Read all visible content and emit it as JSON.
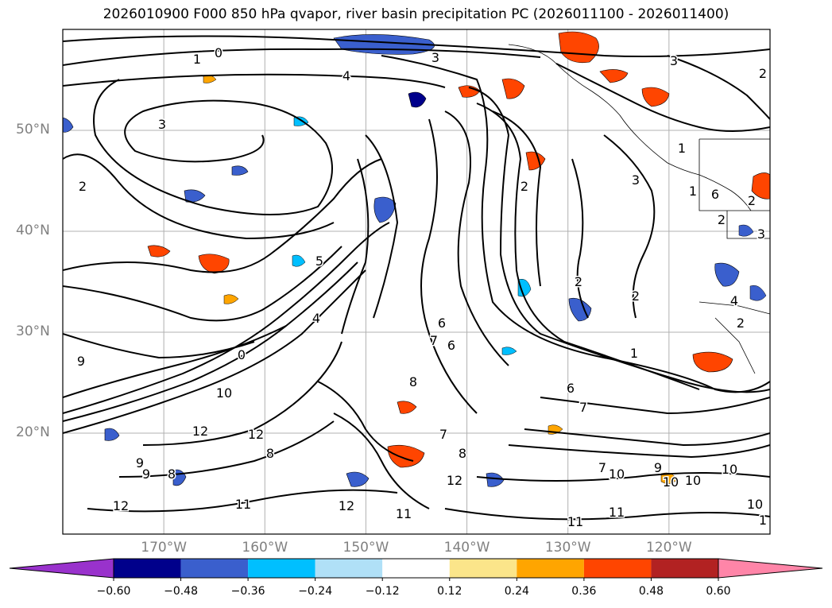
{
  "title": "2026010900 F000 850 hPa qvapor, river basin precipitation PC (2026011100 - 2026011400)",
  "map": {
    "lon_range": [
      -180,
      -110
    ],
    "lat_range": [
      10,
      60
    ],
    "lat_labels": [
      "50°N",
      "40°N",
      "30°N",
      "20°N"
    ],
    "lat_values": [
      50,
      40,
      30,
      20
    ],
    "lon_labels": [
      "170°W",
      "160°W",
      "150°W",
      "140°W",
      "130°W",
      "120°W"
    ],
    "lon_values": [
      -170,
      -160,
      -150,
      -140,
      -130,
      -120
    ],
    "contour_labels": [
      "1",
      "0",
      "3",
      "4",
      "3",
      "2",
      "3",
      "2",
      "5",
      "0",
      "9",
      "4",
      "10",
      "12",
      "12",
      "8",
      "8",
      "9",
      "12",
      "11",
      "12",
      "11",
      "12",
      "9",
      "6",
      "7",
      "8",
      "6",
      "7",
      "8",
      "1",
      "2",
      "2",
      "2",
      "1",
      "3",
      "1",
      "4",
      "2",
      "3",
      "2",
      "2",
      "7",
      "6",
      "7",
      "9",
      "10",
      "10",
      "10",
      "10",
      "11",
      "11",
      "10",
      "6",
      "1"
    ],
    "contour_color": "#000000",
    "gridline_color": "#b0b0b0",
    "grid": true
  },
  "colorbar": {
    "tick_labels": [
      "−0.60",
      "−0.48",
      "−0.36",
      "−0.24",
      "−0.12",
      "0.12",
      "0.24",
      "0.36",
      "0.48",
      "0.60"
    ],
    "colors": [
      "#9932cc",
      "#00008b",
      "#3a5fcd",
      "#00bfff",
      "#b0e0f7",
      "#ffffff",
      "#fbe58a",
      "#ffa500",
      "#ff4500",
      "#b22222",
      "#ff85a8"
    ],
    "extend": "both"
  }
}
